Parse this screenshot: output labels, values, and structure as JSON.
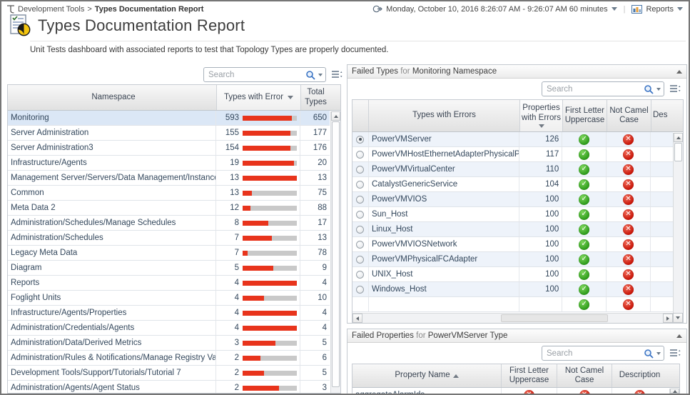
{
  "colors": {
    "bar_red": "#e8341c",
    "bar_track": "#c9c9c9",
    "pass_green": "#2f9c1c",
    "fail_red": "#c8170a",
    "selected_row": "#dbe7f6"
  },
  "breadcrumb": {
    "parent": "Development Tools",
    "separator": ">",
    "current": "Types Documentation Report"
  },
  "time_range": {
    "label": "Monday, October 10, 2016 8:26:07 AM - 9:26:07 AM 60 minutes"
  },
  "reports_menu": {
    "label": "Reports"
  },
  "page": {
    "title": "Types Documentation Report",
    "description": "Unit Tests dashboard with associated reports to test that Topology Types are properly documented."
  },
  "namespace_panel": {
    "search_placeholder": "Search",
    "columns": {
      "namespace": "Namespace",
      "errors": "Types with Error",
      "total": "Total Types"
    },
    "sort": {
      "column": "Types with Error",
      "direction": "desc"
    },
    "rows": [
      {
        "name": "Monitoring",
        "errors": 593,
        "total": 650,
        "selected": true
      },
      {
        "name": "Server Administration",
        "errors": 155,
        "total": 177,
        "selected": false
      },
      {
        "name": "Server Administration3",
        "errors": 154,
        "total": 176,
        "selected": false
      },
      {
        "name": "Infrastructure/Agents",
        "errors": 19,
        "total": 20,
        "selected": false
      },
      {
        "name": "Management Server/Servers/Data Management/Instances",
        "errors": 13,
        "total": 13,
        "selected": false
      },
      {
        "name": "Common",
        "errors": 13,
        "total": 75,
        "selected": false
      },
      {
        "name": "Meta Data 2",
        "errors": 12,
        "total": 88,
        "selected": false
      },
      {
        "name": "Administration/Schedules/Manage Schedules",
        "errors": 8,
        "total": 17,
        "selected": false
      },
      {
        "name": "Administration/Schedules",
        "errors": 7,
        "total": 13,
        "selected": false
      },
      {
        "name": "Legacy Meta Data",
        "errors": 7,
        "total": 78,
        "selected": false
      },
      {
        "name": "Diagram",
        "errors": 5,
        "total": 9,
        "selected": false
      },
      {
        "name": "Reports",
        "errors": 4,
        "total": 4,
        "selected": false
      },
      {
        "name": "Foglight Units",
        "errors": 4,
        "total": 10,
        "selected": false
      },
      {
        "name": "Infrastructure/Agents/Properties",
        "errors": 4,
        "total": 4,
        "selected": false
      },
      {
        "name": "Administration/Credentials/Agents",
        "errors": 4,
        "total": 4,
        "selected": false
      },
      {
        "name": "Administration/Data/Derived Metrics",
        "errors": 3,
        "total": 5,
        "selected": false
      },
      {
        "name": "Administration/Rules & Notifications/Manage Registry Variables",
        "errors": 2,
        "total": 6,
        "selected": false
      },
      {
        "name": "Development Tools/Support/Tutorials/Tutorial 7",
        "errors": 2,
        "total": 5,
        "selected": false
      },
      {
        "name": "Administration/Agents/Agent Status",
        "errors": 2,
        "total": 3,
        "selected": false
      }
    ]
  },
  "failed_types_panel": {
    "title": {
      "prefix": "Failed Types",
      "for_word": "for",
      "subject": "Monitoring",
      "suffix": "Namespace"
    },
    "search_placeholder": "Search",
    "columns": {
      "types": "Types with Errors",
      "props": "Properties with Errors",
      "first": "First Letter Uppercase",
      "camel": "Not Camel Case",
      "desc": "Des"
    },
    "sort": {
      "column": "Properties with Errors",
      "direction": "desc"
    },
    "rows": [
      {
        "name": "PowerVMServer",
        "props": 126,
        "first_letter_uppercase": true,
        "not_camel_case": false,
        "selected": true
      },
      {
        "name": "PowerVMHostEthernetAdapterPhysicalPort",
        "props": 117,
        "first_letter_uppercase": true,
        "not_camel_case": false,
        "selected": false
      },
      {
        "name": "PowerVMVirtualCenter",
        "props": 110,
        "first_letter_uppercase": true,
        "not_camel_case": false,
        "selected": false
      },
      {
        "name": "CatalystGenericService",
        "props": 104,
        "first_letter_uppercase": true,
        "not_camel_case": false,
        "selected": false
      },
      {
        "name": "PowerVMVIOS",
        "props": 100,
        "first_letter_uppercase": true,
        "not_camel_case": false,
        "selected": false
      },
      {
        "name": "Sun_Host",
        "props": 100,
        "first_letter_uppercase": true,
        "not_camel_case": false,
        "selected": false
      },
      {
        "name": "Linux_Host",
        "props": 100,
        "first_letter_uppercase": true,
        "not_camel_case": false,
        "selected": false
      },
      {
        "name": "PowerVMVIOSNetwork",
        "props": 100,
        "first_letter_uppercase": true,
        "not_camel_case": false,
        "selected": false
      },
      {
        "name": "PowerVMPhysicalFCAdapter",
        "props": 100,
        "first_letter_uppercase": true,
        "not_camel_case": false,
        "selected": false
      },
      {
        "name": "UNIX_Host",
        "props": 100,
        "first_letter_uppercase": true,
        "not_camel_case": false,
        "selected": false
      },
      {
        "name": "Windows_Host",
        "props": 100,
        "first_letter_uppercase": true,
        "not_camel_case": false,
        "selected": false
      }
    ],
    "partial_row": {
      "first_letter_uppercase": true,
      "not_camel_case": false
    }
  },
  "failed_properties_panel": {
    "title": {
      "prefix": "Failed Properties",
      "for_word": "for",
      "subject": "PowerVMServer",
      "suffix": "Type"
    },
    "search_placeholder": "Search",
    "columns": {
      "prop": "Property Name",
      "first": "First Letter Uppercase",
      "camel": "Not Camel Case",
      "desc": "Description"
    },
    "sort": {
      "column": "Property Name",
      "direction": "asc"
    },
    "rows": [
      {
        "name": "aggregateAlarmIds",
        "first_letter_uppercase": false,
        "not_camel_case": false,
        "description": false
      }
    ]
  }
}
